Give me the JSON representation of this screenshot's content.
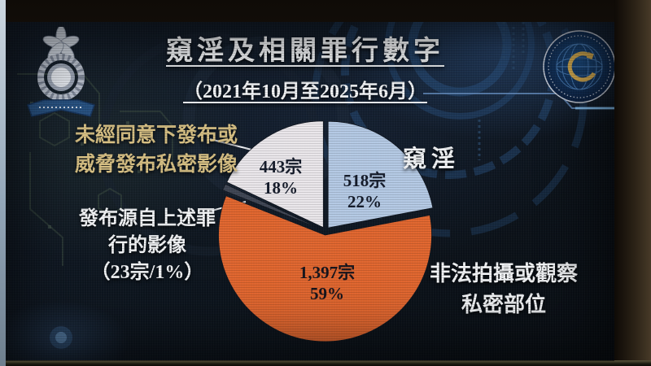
{
  "header": {
    "title": "窺淫及相關罪行數字",
    "subtitle": "（2021年10月至2025年6月）"
  },
  "logos": {
    "left": "hong-kong-police-badge",
    "right": "cyber-globe-emblem"
  },
  "callouts": {
    "ncii": {
      "lines": [
        "未經同意下發布或",
        "威脅發布私密影像"
      ]
    },
    "voyeurism": {
      "text": "窺淫"
    },
    "publication": {
      "lines": [
        "發布源自上述罪",
        "行的影像",
        "（23宗/1%）"
      ]
    },
    "unlawful": {
      "lines": [
        "非法拍攝或觀察",
        "私密部位"
      ]
    }
  },
  "chart_data": {
    "type": "pie",
    "title": "窺淫及相關罪行數字",
    "period": "2021年10月至2025年6月",
    "unit": "宗",
    "direction": "clockwise",
    "start_angle_deg": 0,
    "label_line_gap": 26,
    "slices": [
      {
        "label": "窺淫",
        "cases": 518,
        "pct": 22,
        "cases_text": "518宗",
        "pct_text": "22%",
        "color": "#b4c9e4",
        "text_color": "#141b2a",
        "label_offset": [
          48,
          -55
        ]
      },
      {
        "label": "非法拍攝或觀察私密部位",
        "cases": 1397,
        "pct": 59,
        "cases_text": "1,397宗",
        "pct_text": "59%",
        "color": "#e0662f",
        "text_color": "#16141c",
        "label_offset": [
          2,
          58
        ]
      },
      {
        "label": "發布源自上述罪行的影像",
        "cases": 23,
        "pct": 1,
        "cases_text": "",
        "pct_text": "",
        "color": "#3f4654",
        "text_color": "#141b2a",
        "label_offset": [
          0,
          0
        ]
      },
      {
        "label": "未經同意下發布或威脅發布私密影像",
        "cases": 443,
        "pct": 18,
        "cases_text": "443宗",
        "pct_text": "18%",
        "color": "#e9e6ea",
        "text_color": "#141b2a",
        "label_offset": [
          -55,
          -72
        ]
      }
    ]
  }
}
